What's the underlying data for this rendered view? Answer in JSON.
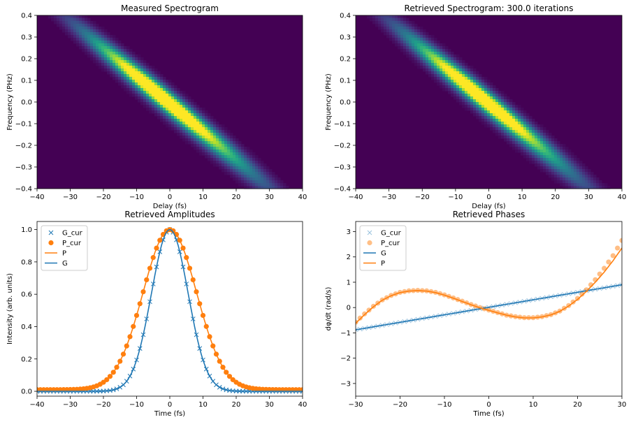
{
  "chart_data": [
    {
      "type": "heatmap",
      "title": "Measured Spectrogram",
      "xlabel": "Delay (fs)",
      "ylabel": "Frequency (PHz)",
      "xlim": [
        -40,
        40
      ],
      "ylim": [
        -0.4,
        0.4
      ],
      "xticks": [
        -40,
        -30,
        -20,
        -10,
        0,
        10,
        20,
        30,
        40
      ],
      "yticks": [
        -0.4,
        -0.3,
        -0.2,
        -0.1,
        0.0,
        0.1,
        0.2,
        0.3,
        0.4
      ],
      "colormap": "viridis",
      "background_color": "#440154",
      "features": [
        {
          "delay": -5,
          "freq": 0.06,
          "amplitude": 1.0,
          "width_delay": 14,
          "width_freq": 0.035
        },
        {
          "delay": 8,
          "freq": -0.12,
          "amplitude": 0.55,
          "width_delay": 16,
          "width_freq": 0.04
        }
      ]
    },
    {
      "type": "heatmap",
      "title": "Retrieved Spectrogram: 300.0 iterations",
      "xlabel": "Delay (fs)",
      "ylabel": "Frequency (PHz)",
      "xlim": [
        -40,
        40
      ],
      "ylim": [
        -0.4,
        0.4
      ],
      "xticks": [
        -40,
        -30,
        -20,
        -10,
        0,
        10,
        20,
        30,
        40
      ],
      "yticks": [
        -0.4,
        -0.3,
        -0.2,
        -0.1,
        0.0,
        0.1,
        0.2,
        0.3,
        0.4
      ],
      "colormap": "viridis",
      "background_color": "#440154",
      "features": [
        {
          "delay": -5,
          "freq": 0.06,
          "amplitude": 1.0,
          "width_delay": 14,
          "width_freq": 0.035
        },
        {
          "delay": 8,
          "freq": -0.12,
          "amplitude": 0.5,
          "width_delay": 16,
          "width_freq": 0.04
        }
      ]
    },
    {
      "type": "line",
      "title": "Retrieved Amplitudes",
      "xlabel": "Time (fs)",
      "ylabel": "Intensity (arb. units)",
      "xlim": [
        -40,
        40
      ],
      "ylim": [
        -0.03,
        1.05
      ],
      "xticks": [
        -40,
        -30,
        -20,
        -10,
        0,
        10,
        20,
        30,
        40
      ],
      "yticks": [
        0.0,
        0.2,
        0.4,
        0.6,
        0.8,
        1.0
      ],
      "legend": {
        "placement": "upper-left",
        "entries": [
          "G_cur",
          "P_cur",
          "P",
          "G"
        ]
      },
      "series": [
        {
          "name": "G_cur",
          "marker": "x",
          "color": "#1f77b4",
          "function": "gaussian",
          "center": 0,
          "fwhm": 13,
          "baseline": 0.0
        },
        {
          "name": "P_cur",
          "marker": "circle",
          "color": "#ff7f0e",
          "function": "gaussian",
          "center": 0,
          "fwhm": 19,
          "baseline": 0.01
        },
        {
          "name": "P",
          "line": "solid",
          "color": "#ff7f0e",
          "function": "gaussian",
          "center": 0,
          "fwhm": 19,
          "baseline": 0.01
        },
        {
          "name": "G",
          "line": "solid",
          "color": "#1f77b4",
          "function": "gaussian",
          "center": 0,
          "fwhm": 13,
          "baseline": 0.0
        }
      ]
    },
    {
      "type": "line",
      "title": "Retrieved Phases",
      "xlabel": "Time (fs)",
      "ylabel": "dφ/dt (rad/s)",
      "xlim": [
        -30,
        30
      ],
      "ylim": [
        -3.5,
        3.4
      ],
      "xticks": [
        -30,
        -20,
        -10,
        0,
        10,
        20,
        30
      ],
      "yticks": [
        -3,
        -2,
        -1,
        0,
        1,
        2,
        3
      ],
      "legend": {
        "placement": "upper-left",
        "entries": [
          "G_cur",
          "P_cur",
          "G",
          "P"
        ]
      },
      "series": [
        {
          "name": "G_cur",
          "marker": "x",
          "color": "#1f77b4",
          "opacity": 0.45,
          "x": [
            -30,
            30
          ],
          "y": [
            -0.88,
            0.9
          ]
        },
        {
          "name": "P_cur",
          "marker": "circle",
          "color": "#ff7f0e",
          "opacity": 0.5,
          "x": [
            -30,
            -28,
            -26,
            -24,
            -22,
            -20,
            -18,
            -16,
            -14,
            -12,
            -10,
            -8,
            -6,
            -4,
            -2,
            0,
            2,
            4,
            6,
            8,
            10,
            12,
            14,
            16,
            18,
            20,
            22,
            24,
            26,
            28,
            30
          ],
          "y": [
            -0.58,
            -0.25,
            0.05,
            0.3,
            0.48,
            0.6,
            0.66,
            0.68,
            0.66,
            0.6,
            0.5,
            0.38,
            0.25,
            0.12,
            0.0,
            -0.1,
            -0.2,
            -0.3,
            -0.36,
            -0.4,
            -0.4,
            -0.36,
            -0.28,
            -0.14,
            0.08,
            0.36,
            0.7,
            1.1,
            1.55,
            2.05,
            2.65
          ]
        },
        {
          "name": "G",
          "line": "solid",
          "color": "#1f77b4",
          "x": [
            -30,
            30
          ],
          "y": [
            -0.88,
            0.9
          ]
        },
        {
          "name": "P",
          "line": "solid",
          "color": "#ff7f0e",
          "x": [
            -30,
            -28,
            -26,
            -24,
            -22,
            -20,
            -18,
            -16,
            -14,
            -12,
            -10,
            -8,
            -6,
            -4,
            -2,
            0,
            2,
            4,
            6,
            8,
            10,
            12,
            14,
            16,
            18,
            20,
            22,
            24,
            26,
            28,
            30
          ],
          "y": [
            -0.62,
            -0.28,
            0.03,
            0.29,
            0.47,
            0.59,
            0.65,
            0.67,
            0.65,
            0.59,
            0.49,
            0.37,
            0.24,
            0.11,
            -0.01,
            -0.11,
            -0.21,
            -0.3,
            -0.37,
            -0.41,
            -0.41,
            -0.37,
            -0.29,
            -0.15,
            0.06,
            0.32,
            0.64,
            1.0,
            1.4,
            1.85,
            2.35
          ]
        }
      ]
    }
  ]
}
